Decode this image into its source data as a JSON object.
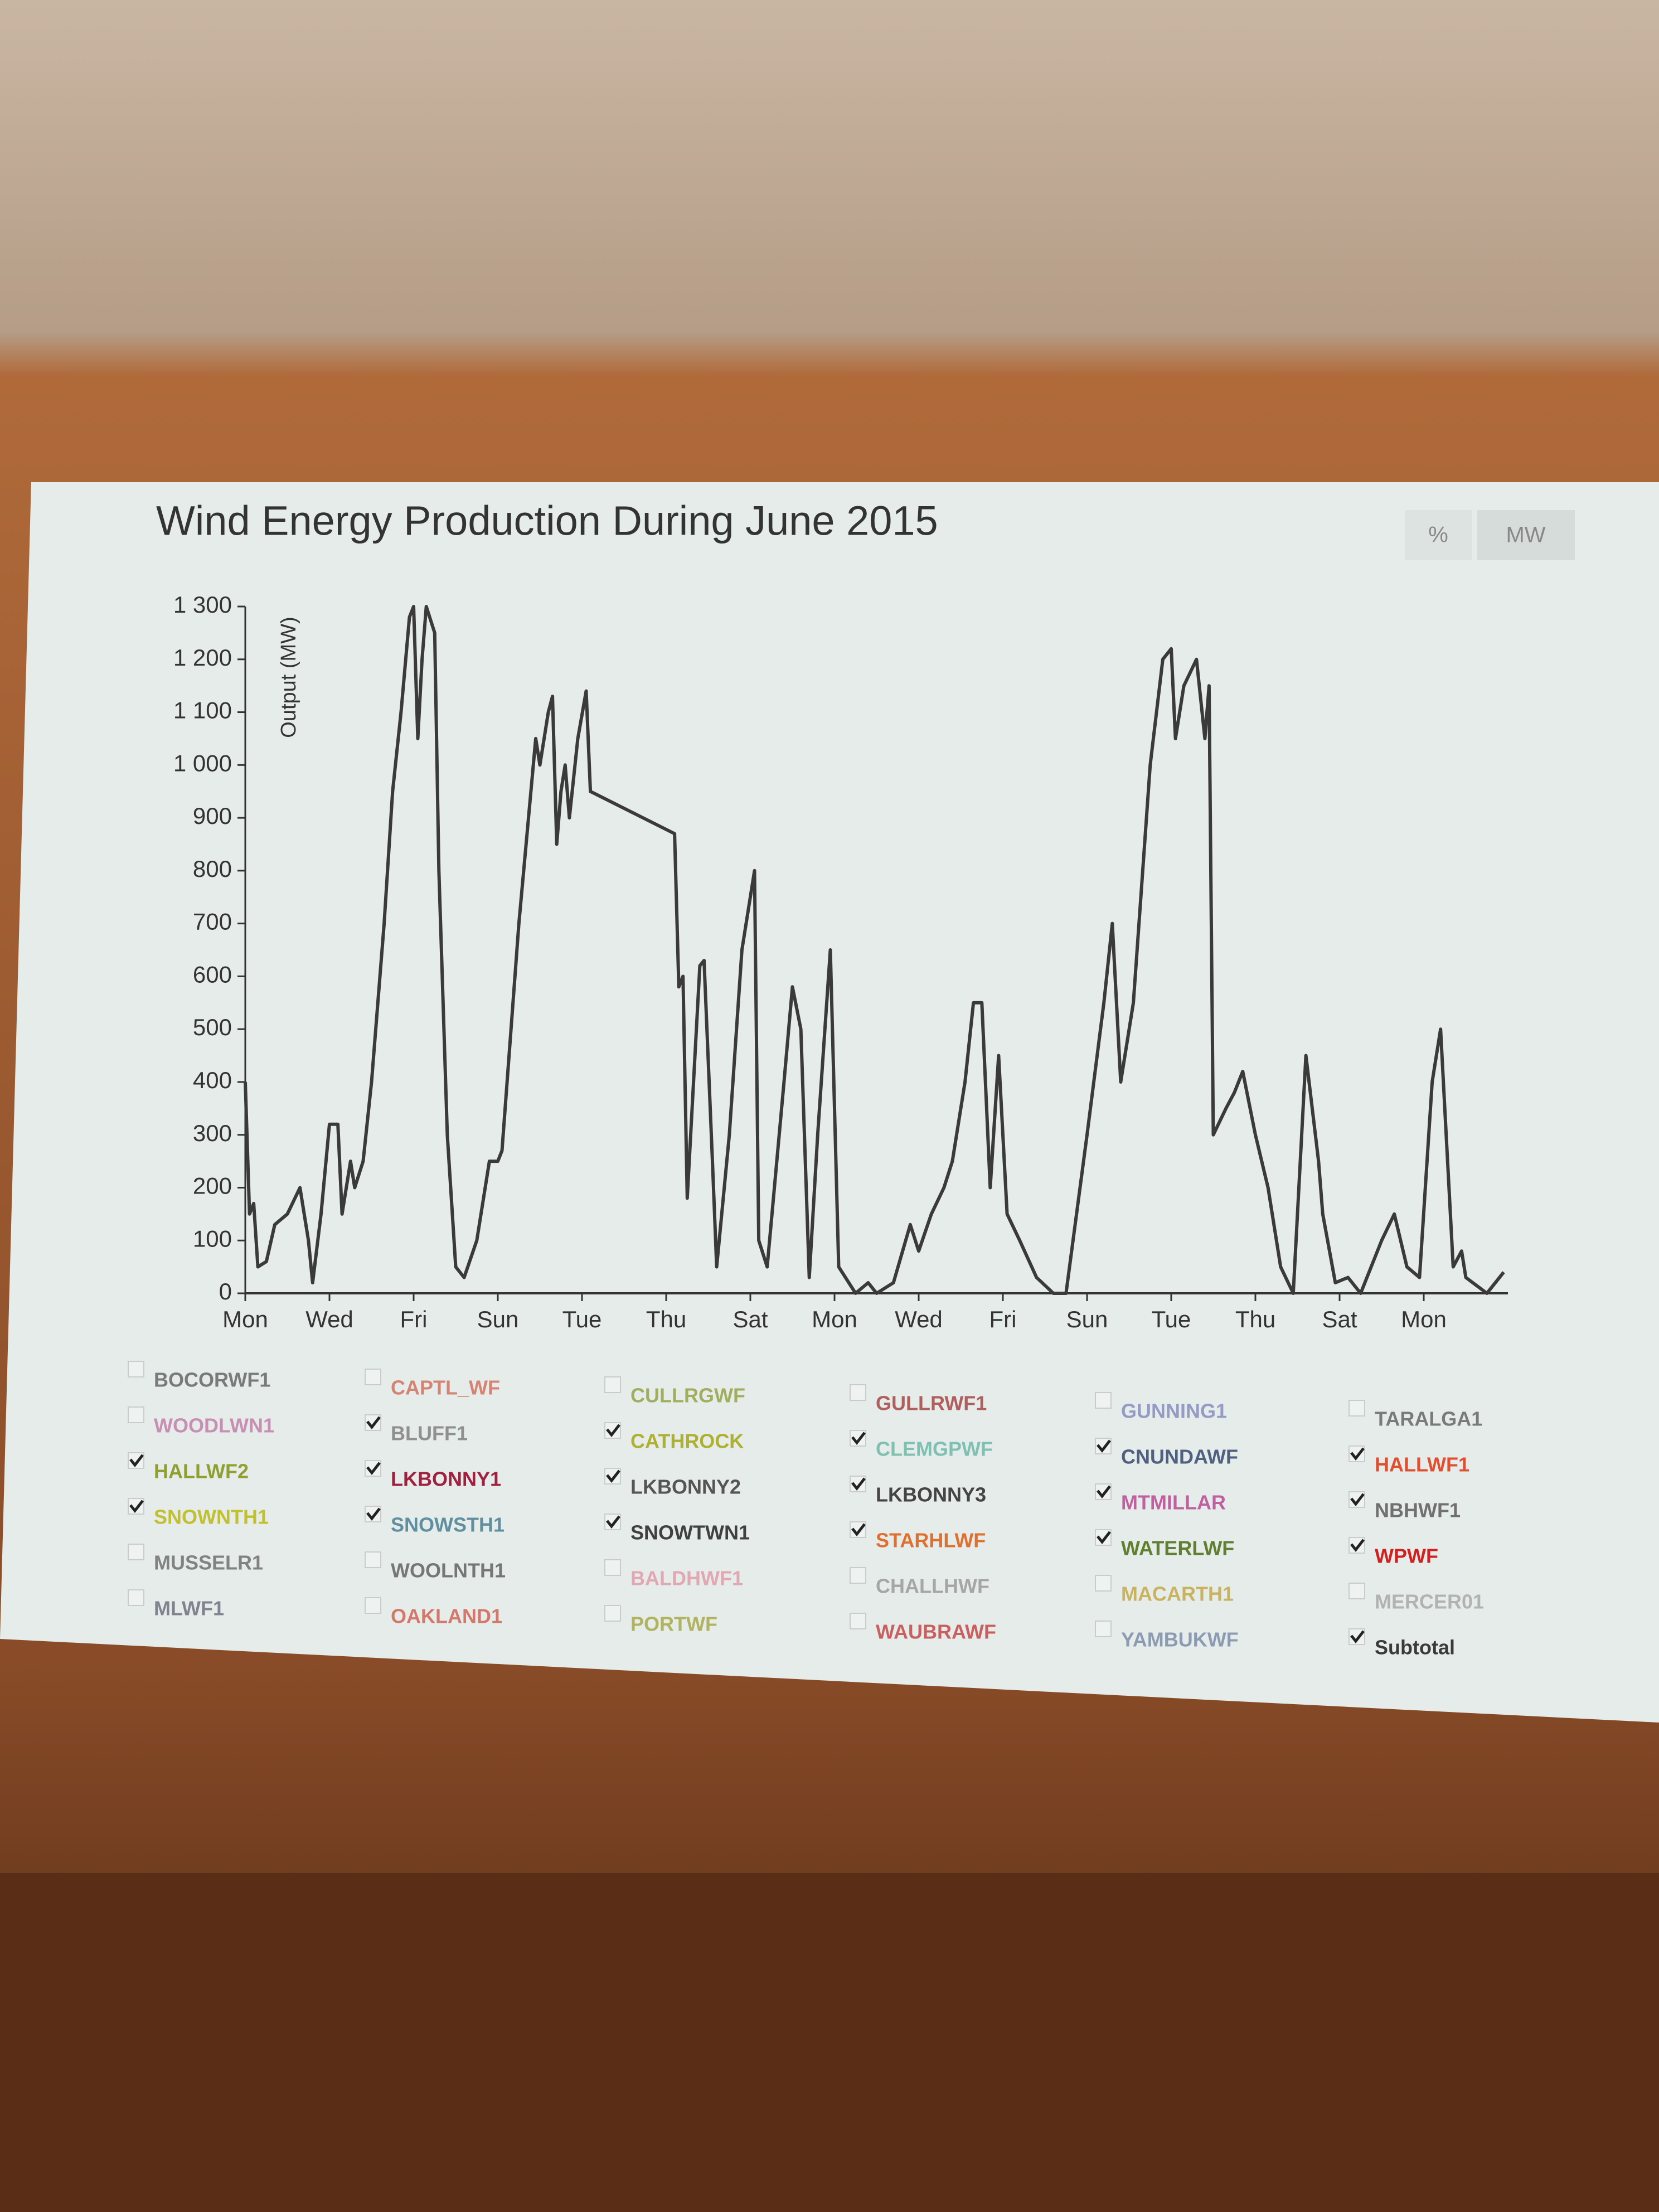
{
  "chart_data": {
    "type": "line",
    "title": "Wind Energy Production During June 2015",
    "y_label": "Output (MW)",
    "buttons": [
      "%",
      "MW"
    ],
    "xlim": [
      0,
      30
    ],
    "xticks": [
      {
        "value": 0,
        "label": "Mon"
      },
      {
        "value": 2,
        "label": "Wed"
      },
      {
        "value": 4,
        "label": "Fri"
      },
      {
        "value": 6,
        "label": "Sun"
      },
      {
        "value": 8,
        "label": "Tue"
      },
      {
        "value": 10,
        "label": "Thu"
      },
      {
        "value": 12,
        "label": "Sat"
      },
      {
        "value": 14,
        "label": "Mon"
      },
      {
        "value": 16,
        "label": "Wed"
      },
      {
        "value": 18,
        "label": "Fri"
      },
      {
        "value": 20,
        "label": "Sun"
      },
      {
        "value": 22,
        "label": "Tue"
      },
      {
        "value": 24,
        "label": "Thu"
      },
      {
        "value": 26,
        "label": "Sat"
      },
      {
        "value": 28,
        "label": "Mon"
      }
    ],
    "ylim": [
      0,
      1300
    ],
    "yticks": [
      0,
      100,
      200,
      300,
      400,
      500,
      600,
      700,
      800,
      900,
      {
        "value": 1000,
        "label": "1 000"
      },
      {
        "value": 1100,
        "label": "1 100"
      },
      {
        "value": 1200,
        "label": "1 200"
      },
      {
        "value": 1300,
        "label": "1 300"
      }
    ],
    "x": [
      0,
      0.1,
      0.2,
      0.3,
      0.5,
      0.7,
      1.0,
      1.3,
      1.5,
      1.6,
      1.8,
      2.0,
      2.2,
      2.3,
      2.5,
      2.6,
      2.8,
      3.0,
      3.3,
      3.5,
      3.7,
      3.9,
      4.0,
      4.1,
      4.2,
      4.3,
      4.5,
      4.6,
      4.8,
      5.0,
      5.2,
      5.5,
      5.8,
      6.0,
      6.1,
      6.5,
      6.9,
      7.0,
      7.2,
      7.3,
      7.4,
      7.5,
      7.6,
      7.7,
      7.9,
      8.1,
      8.2,
      10.2,
      10.3,
      10.4,
      10.5,
      10.8,
      10.9,
      11.1,
      11.2,
      11.5,
      11.8,
      12.1,
      12.2,
      12.4,
      12.8,
      13.0,
      13.2,
      13.4,
      13.6,
      13.9,
      14.1,
      14.5,
      14.8,
      15.0,
      15.4,
      15.8,
      16.0,
      16.3,
      16.6,
      16.8,
      17.1,
      17.3,
      17.5,
      17.7,
      17.9,
      18.1,
      18.4,
      18.8,
      19.2,
      19.5,
      20.0,
      20.4,
      20.6,
      20.8,
      21.1,
      21.5,
      21.8,
      22.0,
      22.1,
      22.3,
      22.6,
      22.8,
      22.9,
      23.0,
      23.3,
      23.5,
      23.7,
      24.0,
      24.3,
      24.6,
      24.9,
      25.2,
      25.5,
      25.6,
      25.9,
      26.2,
      26.5,
      27.0,
      27.3,
      27.6,
      27.9,
      28.2,
      28.4,
      28.7,
      28.9,
      29.0,
      29.5,
      29.9
    ],
    "series": [
      {
        "name": "BOCORWF1",
        "color": "#555555",
        "checked": false
      },
      {
        "name": "CAPTL_WF",
        "color": "#d0604a",
        "checked": false
      },
      {
        "name": "CULLRGWF",
        "color": "#8a9a30",
        "checked": false
      },
      {
        "name": "GULLRWF1",
        "color": "#a03030",
        "checked": false
      },
      {
        "name": "GUNNING1",
        "color": "#7a80b8",
        "checked": false
      },
      {
        "name": "TARALGA1",
        "color": "#555555",
        "checked": false
      },
      {
        "name": "WOODLWN1",
        "color": "#c070a0",
        "checked": false
      },
      {
        "name": "BLUFF1",
        "color": "#909090",
        "checked": true
      },
      {
        "name": "CATHROCK",
        "color": "#b0b030",
        "checked": true
      },
      {
        "name": "CLEMGPWF",
        "color": "#80c0b0",
        "checked": true
      },
      {
        "name": "CNUNDAWF",
        "color": "#506080",
        "checked": true
      },
      {
        "name": "HALLWF1",
        "color": "#e05030",
        "checked": true
      },
      {
        "name": "HALLWF2",
        "color": "#90a030",
        "checked": true
      },
      {
        "name": "LKBONNY1",
        "color": "#a02040",
        "checked": true
      },
      {
        "name": "LKBONNY2",
        "color": "#555555",
        "checked": true
      },
      {
        "name": "LKBONNY3",
        "color": "#444444",
        "checked": true
      },
      {
        "name": "MTMILLAR",
        "color": "#c060a0",
        "checked": true
      },
      {
        "name": "NBHWF1",
        "color": "#707070",
        "checked": true
      },
      {
        "name": "SNOWNTH1",
        "color": "#c0c030",
        "checked": true
      },
      {
        "name": "SNOWSTH1",
        "color": "#6090a0",
        "checked": true
      },
      {
        "name": "SNOWTWN1",
        "color": "#404040",
        "checked": true
      },
      {
        "name": "STARHLWF",
        "color": "#e07030",
        "checked": true
      },
      {
        "name": "WATERLWF",
        "color": "#608030",
        "checked": true
      },
      {
        "name": "WPWF",
        "color": "#d02020",
        "checked": true
      },
      {
        "name": "MUSSELR1",
        "color": "#606060",
        "checked": false
      },
      {
        "name": "WOOLNTH1",
        "color": "#505050",
        "checked": false
      },
      {
        "name": "BALDHWF1",
        "color": "#e090a0",
        "checked": false
      },
      {
        "name": "CHALLHWF",
        "color": "#909090",
        "checked": false
      },
      {
        "name": "MACARTH1",
        "color": "#c0a030",
        "checked": false
      },
      {
        "name": "MERCER01",
        "color": "#a0a0a0",
        "checked": false
      },
      {
        "name": "MLWF1",
        "color": "#606070",
        "checked": false
      },
      {
        "name": "OAKLAND1",
        "color": "#d05040",
        "checked": false
      },
      {
        "name": "PORTWF",
        "color": "#a0a030",
        "checked": false
      },
      {
        "name": "WAUBRAWF",
        "color": "#c03030",
        "checked": false
      },
      {
        "name": "YAMBUKWF",
        "color": "#7080a0",
        "checked": false
      },
      {
        "name": "Subtotal",
        "color": "#3a3a3a",
        "checked": true,
        "values": [
          400,
          150,
          170,
          50,
          60,
          130,
          150,
          200,
          100,
          20,
          150,
          320,
          320,
          150,
          250,
          200,
          250,
          400,
          700,
          950,
          1100,
          1280,
          1300,
          1050,
          1200,
          1300,
          1250,
          800,
          300,
          50,
          30,
          100,
          250,
          250,
          270,
          700,
          1050,
          1000,
          1100,
          1130,
          850,
          950,
          1000,
          900,
          1050,
          1140,
          950,
          870,
          580,
          600,
          180,
          620,
          630,
          250,
          50,
          300,
          650,
          800,
          100,
          50,
          400,
          580,
          500,
          30,
          300,
          650,
          50,
          0,
          20,
          0,
          20,
          130,
          80,
          150,
          200,
          250,
          400,
          550,
          550,
          200,
          450,
          150,
          100,
          30,
          0,
          0,
          300,
          550,
          700,
          400,
          550,
          1000,
          1200,
          1220,
          1050,
          1150,
          1200,
          1050,
          1150,
          300,
          350,
          380,
          420,
          300,
          200,
          50,
          0,
          450,
          250,
          150,
          20,
          30,
          0,
          100,
          150,
          50,
          30,
          400,
          500,
          50,
          80,
          30,
          0,
          40
        ]
      }
    ]
  }
}
